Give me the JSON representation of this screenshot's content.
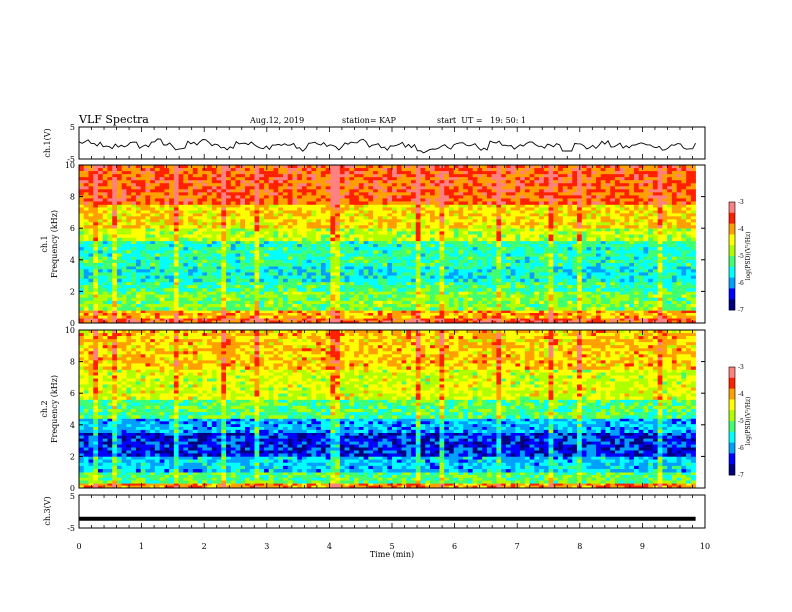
{
  "header": {
    "title": "VLF Spectra",
    "date": "Aug.12, 2019",
    "station": "station= KAP",
    "start": "start  UT =   19: 50: 1"
  },
  "chart_data": [
    {
      "type": "line",
      "panel": "ch1-waveform",
      "ylabel": "ch.1(V)",
      "ylim": [
        -5,
        5
      ],
      "yticks": [
        "5",
        "-5"
      ],
      "xlim": [
        0,
        10
      ],
      "series": [
        {
          "values": [
            0.2,
            -0.4,
            -1.5,
            -0.8,
            -0.3,
            -1.0,
            0.6,
            -0.5,
            -1.6,
            -0.2,
            0.5,
            -0.9,
            -1.5,
            0.1,
            -0.4,
            -1.2,
            -0.3,
            -0.7,
            -1.8,
            0.0,
            -0.6,
            -1.4,
            -0.2,
            0.4,
            -0.8,
            -1.6,
            -0.3,
            -1.0,
            -2.3,
            -2.4,
            -1.1,
            -0.2,
            -0.9,
            -1.7,
            0.3,
            -0.5,
            -1.3,
            -0.2,
            -1.0,
            -0.4,
            -1.9,
            -0.6,
            -1.4,
            -0.1,
            -0.8,
            -1.2,
            -0.3,
            -0.9,
            -1.5,
            -0.5,
            -1.7,
            -0.2
          ]
        }
      ]
    },
    {
      "type": "heatmap",
      "panel": "ch1-spectrogram",
      "ylabel": "ch.1\nFrequency (kHz)",
      "xlim": [
        0,
        10
      ],
      "ylim": [
        0,
        10
      ],
      "yticks": [
        "0",
        "2",
        "4",
        "6",
        "8",
        "10"
      ],
      "data_xmax": 9.85,
      "colorbar": {
        "label": "log(PSD)(V²/Hz)",
        "range": [
          -7,
          -3
        ],
        "ticks": [
          "-3",
          "-4",
          "-5",
          "-6",
          "-7"
        ]
      },
      "bands": [
        {
          "kHz": [
            0,
            0.3
          ],
          "level": -3.6
        },
        {
          "kHz": [
            0.3,
            0.8
          ],
          "level": -4.1
        },
        {
          "kHz": [
            0.8,
            2.0
          ],
          "level": -5.0
        },
        {
          "kHz": [
            2.0,
            2.6
          ],
          "level": -5.3
        },
        {
          "kHz": [
            2.6,
            3.6
          ],
          "level": -5.6
        },
        {
          "kHz": [
            3.6,
            5.2
          ],
          "level": -5.4
        },
        {
          "kHz": [
            5.2,
            6.0
          ],
          "level": -4.7
        },
        {
          "kHz": [
            6.0,
            7.5
          ],
          "level": -4.3
        },
        {
          "kHz": [
            7.5,
            10.0
          ],
          "level": -3.7
        }
      ]
    },
    {
      "type": "heatmap",
      "panel": "ch2-spectrogram",
      "ylabel": "ch.2\nFrequency (kHz)",
      "xlim": [
        0,
        10
      ],
      "ylim": [
        0,
        10
      ],
      "yticks": [
        "0",
        "2",
        "4",
        "6",
        "8",
        "10"
      ],
      "data_xmax": 9.85,
      "colorbar": {
        "label": "log(PSD)(V²/Hz)",
        "range": [
          -7,
          -3
        ],
        "ticks": [
          "-3",
          "-4",
          "-5",
          "-6",
          "-7"
        ]
      },
      "bands": [
        {
          "kHz": [
            0,
            0.3
          ],
          "level": -3.9
        },
        {
          "kHz": [
            0.3,
            1.0
          ],
          "level": -5.2
        },
        {
          "kHz": [
            1.0,
            2.0
          ],
          "level": -5.8
        },
        {
          "kHz": [
            2.0,
            3.5
          ],
          "level": -6.4
        },
        {
          "kHz": [
            3.5,
            4.4
          ],
          "level": -5.9
        },
        {
          "kHz": [
            4.4,
            5.6
          ],
          "level": -5.2
        },
        {
          "kHz": [
            5.6,
            7.5
          ],
          "level": -4.6
        },
        {
          "kHz": [
            7.5,
            10.0
          ],
          "level": -4.2
        }
      ]
    },
    {
      "type": "line",
      "panel": "ch3-waveform",
      "ylabel": "ch.3(V)",
      "ylim": [
        -5,
        5
      ],
      "yticks": [
        "5",
        "-5"
      ],
      "xlim": [
        0,
        10
      ],
      "series": [
        {
          "values": [
            -2.2,
            -2.2
          ]
        }
      ]
    }
  ],
  "xaxis": {
    "label": "Time (min)",
    "ticks": [
      "0",
      "1",
      "2",
      "3",
      "4",
      "5",
      "6",
      "7",
      "8",
      "9",
      "10"
    ]
  },
  "colors": {
    "ramp": [
      "#00007f",
      "#0000ff",
      "#00a0ff",
      "#00ffff",
      "#40ff70",
      "#b0ff00",
      "#ffff00",
      "#ffa000",
      "#ff2000",
      "#ff8080"
    ]
  }
}
